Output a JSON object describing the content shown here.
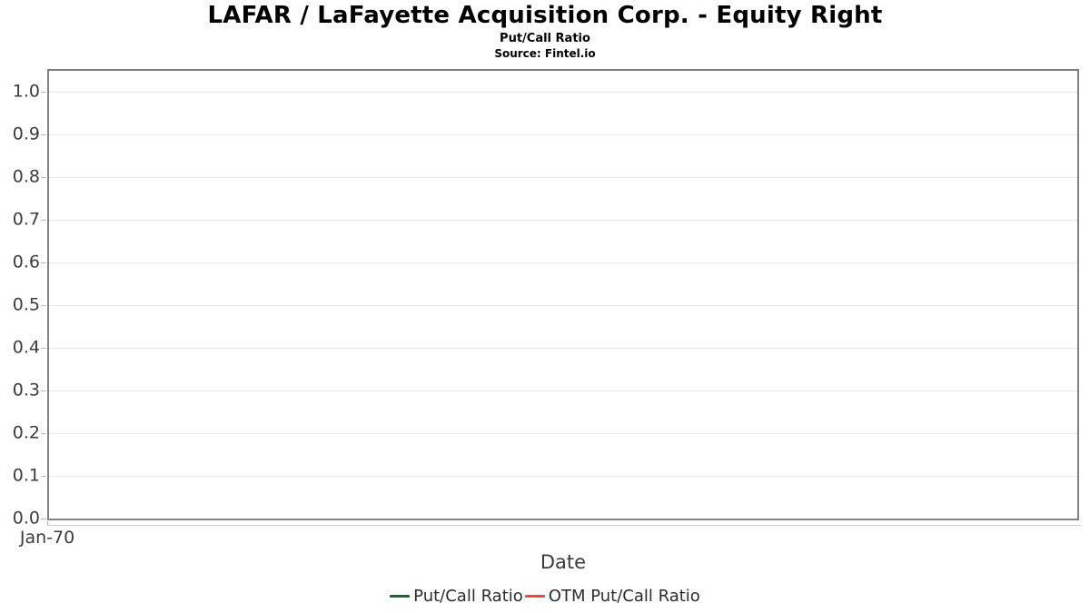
{
  "header": {
    "title": "LAFAR / LaFayette Acquisition Corp. - Equity Right",
    "subtitle": "Put/Call Ratio",
    "source": "Source: Fintel.io"
  },
  "chart_data": {
    "type": "line",
    "title": "LAFAR / LaFayette Acquisition Corp. - Equity Right",
    "subtitle": "Put/Call Ratio",
    "source": "Source: Fintel.io",
    "xlabel": "Date",
    "ylabel": "",
    "x_tick_labels": [
      "Jan-70"
    ],
    "yticks": [
      0.0,
      0.1,
      0.2,
      0.3,
      0.4,
      0.5,
      0.6,
      0.7,
      0.8,
      0.9,
      1.0
    ],
    "ylim": [
      0,
      1.05
    ],
    "grid": true,
    "legend_position": "bottom",
    "series": [
      {
        "name": "Put/Call Ratio",
        "color": "#2d5c3a",
        "values": []
      },
      {
        "name": "OTM Put/Call Ratio",
        "color": "#f4444c",
        "values": []
      }
    ],
    "plot_border_color": "#818181",
    "gridline_color": "#e7e7e7"
  }
}
